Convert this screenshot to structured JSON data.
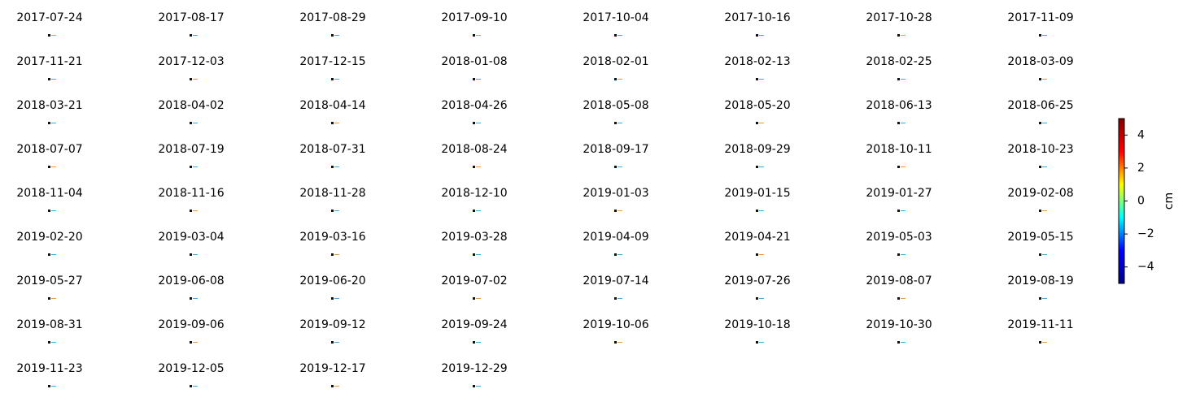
{
  "chart_data": {
    "type": "image-grid",
    "titles": [
      "2017-07-24",
      "2017-08-17",
      "2017-08-29",
      "2017-09-10",
      "2017-10-04",
      "2017-10-16",
      "2017-10-28",
      "2017-11-09",
      "2017-11-21",
      "2017-12-03",
      "2017-12-15",
      "2018-01-08",
      "2018-02-01",
      "2018-02-13",
      "2018-02-25",
      "2018-03-09",
      "2018-03-21",
      "2018-04-02",
      "2018-04-14",
      "2018-04-26",
      "2018-05-08",
      "2018-05-20",
      "2018-06-13",
      "2018-06-25",
      "2018-07-07",
      "2018-07-19",
      "2018-07-31",
      "2018-08-24",
      "2018-09-17",
      "2018-09-29",
      "2018-10-11",
      "2018-10-23",
      "2018-11-04",
      "2018-11-16",
      "2018-11-28",
      "2018-12-10",
      "2019-01-03",
      "2019-01-15",
      "2019-01-27",
      "2019-02-08",
      "2019-02-20",
      "2019-03-04",
      "2019-03-16",
      "2019-03-28",
      "2019-04-09",
      "2019-04-21",
      "2019-05-03",
      "2019-05-15",
      "2019-05-27",
      "2019-06-08",
      "2019-06-20",
      "2019-07-02",
      "2019-07-14",
      "2019-07-26",
      "2019-08-07",
      "2019-08-19",
      "2019-08-31",
      "2019-09-06",
      "2019-09-12",
      "2019-09-24",
      "2019-10-06",
      "2019-10-18",
      "2019-10-30",
      "2019-11-11",
      "2019-11-23",
      "2019-12-05",
      "2019-12-17",
      "2019-12-29"
    ],
    "colorbar": {
      "label": "cm",
      "lim": [
        -5,
        5
      ],
      "ticks": [
        {
          "value": -4,
          "label": "−4"
        },
        {
          "value": -2,
          "label": "−2"
        },
        0,
        2,
        4
      ],
      "colors": [
        "#00007f",
        "#0000ff",
        "#00ffff",
        "#ffff00",
        "#ff0000",
        "#7f0000"
      ]
    }
  }
}
